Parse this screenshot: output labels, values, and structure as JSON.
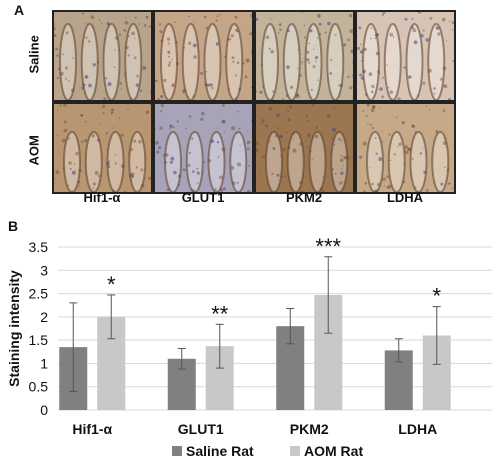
{
  "panel_a": {
    "letter": "A",
    "rows": [
      "Saline",
      "AOM"
    ],
    "markers": [
      "Hif1-α",
      "GLUT1",
      "PKM2",
      "LDHA"
    ],
    "tissue_colors": {
      "Hif1-α": {
        "Saline": "#b7a48a",
        "AOM": "#b89672"
      },
      "GLUT1": {
        "Saline": "#c5a587",
        "AOM": "#a7a3b8"
      },
      "PKM2": {
        "Saline": "#c1b49b",
        "AOM": "#9b7650"
      },
      "LDHA": {
        "Saline": "#d8c4b4",
        "AOM": "#c5a988"
      }
    }
  },
  "panel_b": {
    "letter": "B",
    "chart_data": {
      "type": "bar",
      "categories": [
        "Hif1-α",
        "GLUT1",
        "PKM2",
        "LDHA"
      ],
      "series": [
        {
          "name": "Saline Rat",
          "color": "#808080",
          "values": [
            1.35,
            1.1,
            1.8,
            1.28
          ],
          "errors": [
            0.95,
            0.22,
            0.38,
            0.25
          ]
        },
        {
          "name": "AOM Rat",
          "color": "#c8c8c8",
          "values": [
            2.0,
            1.37,
            2.47,
            1.6
          ],
          "errors": [
            0.47,
            0.47,
            0.82,
            0.62
          ]
        }
      ],
      "significance": [
        "*",
        "**",
        "***",
        "*"
      ],
      "ylabel": "Staining intensity",
      "xlabel": "",
      "ylim": [
        0,
        3.5
      ],
      "yticks": [
        "0",
        "0.5",
        "1",
        "1.5",
        "2",
        "2.5",
        "3",
        "3.5"
      ],
      "grid": true,
      "legend_position": "bottom"
    }
  }
}
